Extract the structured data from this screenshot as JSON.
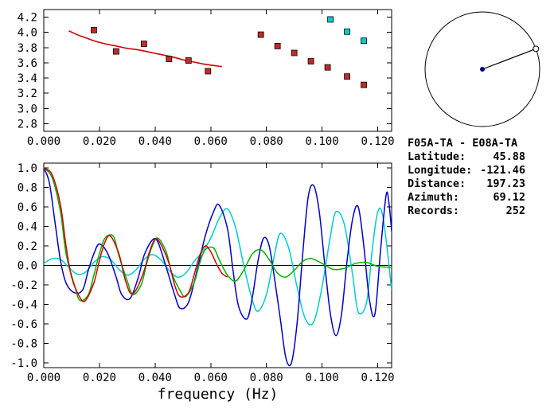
{
  "info": {
    "title": "F05A-TA - E08A-TA",
    "rows": [
      {
        "label": "Latitude:",
        "value": "45.88"
      },
      {
        "label": "Longitude:",
        "value": "-121.46"
      },
      {
        "label": "Distance:",
        "value": "197.23"
      },
      {
        "label": "Azimuth:",
        "value": "69.12"
      },
      {
        "label": "Records:",
        "value": "252"
      }
    ]
  },
  "chart_data": [
    {
      "id": "dispersion",
      "type": "scatter",
      "title": "",
      "xlabel": "",
      "ylabel": "",
      "xlim": [
        0,
        0.125
      ],
      "ylim": [
        2.7,
        4.3
      ],
      "grid": false,
      "xticks": [
        "0.000",
        "0.020",
        "0.040",
        "0.060",
        "0.080",
        "0.100",
        "0.120"
      ],
      "yticks": [
        "2.8",
        "3.0",
        "3.2",
        "3.4",
        "3.6",
        "3.8",
        "4.0",
        "4.2"
      ],
      "series": [
        {
          "name": "red-reference-curve",
          "marker": "line",
          "color": "#d40000",
          "points": [
            [
              0.009,
              4.02
            ],
            [
              0.012,
              3.97
            ],
            [
              0.015,
              3.93
            ],
            [
              0.018,
              3.89
            ],
            [
              0.022,
              3.85
            ],
            [
              0.026,
              3.82
            ],
            [
              0.03,
              3.79
            ],
            [
              0.034,
              3.77
            ],
            [
              0.038,
              3.74
            ],
            [
              0.042,
              3.71
            ],
            [
              0.046,
              3.68
            ],
            [
              0.05,
              3.64
            ],
            [
              0.054,
              3.61
            ],
            [
              0.058,
              3.58
            ],
            [
              0.062,
              3.56
            ],
            [
              0.064,
              3.55
            ]
          ]
        },
        {
          "name": "red-measurements",
          "marker": "square",
          "color": "#c22a2a",
          "points": [
            [
              0.018,
              4.03
            ],
            [
              0.026,
              3.75
            ],
            [
              0.036,
              3.85
            ],
            [
              0.045,
              3.65
            ],
            [
              0.052,
              3.63
            ],
            [
              0.059,
              3.49
            ],
            [
              0.078,
              3.97
            ],
            [
              0.084,
              3.82
            ],
            [
              0.09,
              3.73
            ],
            [
              0.096,
              3.62
            ],
            [
              0.102,
              3.54
            ],
            [
              0.109,
              3.42
            ],
            [
              0.115,
              3.31
            ]
          ]
        },
        {
          "name": "cyan-measurements",
          "marker": "square",
          "color": "#00cccc",
          "points": [
            [
              0.103,
              4.17
            ],
            [
              0.109,
              4.01
            ],
            [
              0.115,
              3.89
            ]
          ]
        }
      ]
    },
    {
      "id": "correlation",
      "type": "line",
      "title": "",
      "xlabel": "frequency (Hz)",
      "ylabel": "",
      "xlim": [
        0,
        0.125
      ],
      "ylim": [
        -1.05,
        1.05
      ],
      "grid": false,
      "zero_line": true,
      "xticks": [
        "0.000",
        "0.020",
        "0.040",
        "0.060",
        "0.080",
        "0.100",
        "0.120"
      ],
      "yticks": [
        "1.0",
        "0.8",
        "0.6",
        "0.4",
        "0.2",
        "0.0",
        "-0.2",
        "-0.4",
        "-0.6",
        "-0.8",
        "-1.0"
      ],
      "series": [
        {
          "name": "cyan-trace",
          "color": "#00cdcd",
          "points": [
            [
              0.0,
              0.02
            ],
            [
              0.003,
              0.07
            ],
            [
              0.006,
              0.06
            ],
            [
              0.009,
              -0.02
            ],
            [
              0.012,
              -0.09
            ],
            [
              0.015,
              -0.07
            ],
            [
              0.018,
              0.03
            ],
            [
              0.021,
              0.09
            ],
            [
              0.024,
              0.06
            ],
            [
              0.027,
              -0.04
            ],
            [
              0.03,
              -0.1
            ],
            [
              0.033,
              -0.05
            ],
            [
              0.036,
              0.06
            ],
            [
              0.039,
              0.11
            ],
            [
              0.042,
              0.06
            ],
            [
              0.045,
              -0.05
            ],
            [
              0.048,
              -0.12
            ],
            [
              0.051,
              -0.08
            ],
            [
              0.054,
              0.04
            ],
            [
              0.057,
              0.14
            ],
            [
              0.06,
              0.28
            ],
            [
              0.063,
              0.48
            ],
            [
              0.066,
              0.58
            ],
            [
              0.069,
              0.38
            ],
            [
              0.072,
              -0.02
            ],
            [
              0.075,
              -0.36
            ],
            [
              0.077,
              -0.47
            ],
            [
              0.08,
              -0.3
            ],
            [
              0.083,
              0.12
            ],
            [
              0.085,
              0.33
            ],
            [
              0.088,
              0.18
            ],
            [
              0.091,
              -0.22
            ],
            [
              0.094,
              -0.55
            ],
            [
              0.097,
              -0.58
            ],
            [
              0.1,
              -0.22
            ],
            [
              0.103,
              0.3
            ],
            [
              0.105,
              0.55
            ],
            [
              0.108,
              0.42
            ],
            [
              0.111,
              -0.1
            ],
            [
              0.113,
              -0.48
            ],
            [
              0.116,
              -0.38
            ],
            [
              0.118,
              0.15
            ],
            [
              0.12,
              0.55
            ],
            [
              0.122,
              0.48
            ],
            [
              0.125,
              -0.25
            ]
          ]
        },
        {
          "name": "blue-trace",
          "color": "#0000c8",
          "points": [
            [
              0.0,
              1.0
            ],
            [
              0.002,
              0.85
            ],
            [
              0.004,
              0.45
            ],
            [
              0.006,
              0.05
            ],
            [
              0.008,
              -0.18
            ],
            [
              0.011,
              -0.28
            ],
            [
              0.014,
              -0.25
            ],
            [
              0.016,
              -0.05
            ],
            [
              0.018,
              0.12
            ],
            [
              0.02,
              0.22
            ],
            [
              0.023,
              0.12
            ],
            [
              0.026,
              -0.12
            ],
            [
              0.028,
              -0.3
            ],
            [
              0.031,
              -0.34
            ],
            [
              0.034,
              -0.12
            ],
            [
              0.036,
              0.1
            ],
            [
              0.039,
              0.26
            ],
            [
              0.041,
              0.24
            ],
            [
              0.044,
              -0.02
            ],
            [
              0.047,
              -0.3
            ],
            [
              0.049,
              -0.44
            ],
            [
              0.052,
              -0.38
            ],
            [
              0.055,
              -0.06
            ],
            [
              0.058,
              0.3
            ],
            [
              0.061,
              0.55
            ],
            [
              0.063,
              0.62
            ],
            [
              0.066,
              0.38
            ],
            [
              0.068,
              -0.05
            ],
            [
              0.07,
              -0.42
            ],
            [
              0.073,
              -0.55
            ],
            [
              0.075,
              -0.32
            ],
            [
              0.077,
              0.05
            ],
            [
              0.079,
              0.28
            ],
            [
              0.081,
              0.2
            ],
            [
              0.083,
              -0.15
            ],
            [
              0.085,
              -0.55
            ],
            [
              0.087,
              -0.95
            ],
            [
              0.089,
              -1.0
            ],
            [
              0.091,
              -0.6
            ],
            [
              0.093,
              0.1
            ],
            [
              0.095,
              0.7
            ],
            [
              0.097,
              0.82
            ],
            [
              0.099,
              0.55
            ],
            [
              0.101,
              0.0
            ],
            [
              0.103,
              -0.5
            ],
            [
              0.105,
              -0.72
            ],
            [
              0.107,
              -0.5
            ],
            [
              0.109,
              0.05
            ],
            [
              0.111,
              0.48
            ],
            [
              0.113,
              0.6
            ],
            [
              0.115,
              0.2
            ],
            [
              0.117,
              -0.35
            ],
            [
              0.119,
              -0.5
            ],
            [
              0.121,
              0.15
            ],
            [
              0.123,
              0.72
            ],
            [
              0.124,
              0.65
            ],
            [
              0.125,
              0.35
            ]
          ]
        },
        {
          "name": "green-trace",
          "color": "#00b000",
          "points": [
            [
              0.0,
              1.0
            ],
            [
              0.003,
              0.9
            ],
            [
              0.006,
              0.55
            ],
            [
              0.008,
              0.12
            ],
            [
              0.011,
              -0.2
            ],
            [
              0.013,
              -0.36
            ],
            [
              0.016,
              -0.3
            ],
            [
              0.018,
              -0.1
            ],
            [
              0.02,
              0.12
            ],
            [
              0.022,
              0.28
            ],
            [
              0.025,
              0.3
            ],
            [
              0.027,
              0.1
            ],
            [
              0.03,
              -0.16
            ],
            [
              0.032,
              -0.3
            ],
            [
              0.035,
              -0.2
            ],
            [
              0.037,
              0.02
            ],
            [
              0.039,
              0.2
            ],
            [
              0.041,
              0.28
            ],
            [
              0.044,
              0.14
            ],
            [
              0.046,
              -0.08
            ],
            [
              0.049,
              -0.26
            ],
            [
              0.051,
              -0.32
            ],
            [
              0.054,
              -0.18
            ],
            [
              0.056,
              0.02
            ],
            [
              0.058,
              0.16
            ],
            [
              0.061,
              0.18
            ],
            [
              0.063,
              0.06
            ],
            [
              0.066,
              -0.1
            ],
            [
              0.069,
              -0.16
            ],
            [
              0.072,
              -0.04
            ],
            [
              0.075,
              0.12
            ],
            [
              0.078,
              0.16
            ],
            [
              0.081,
              0.06
            ],
            [
              0.084,
              -0.08
            ],
            [
              0.087,
              -0.12
            ],
            [
              0.09,
              -0.05
            ],
            [
              0.093,
              0.04
            ],
            [
              0.096,
              0.07
            ],
            [
              0.1,
              0.02
            ],
            [
              0.104,
              -0.04
            ],
            [
              0.108,
              -0.03
            ],
            [
              0.112,
              0.02
            ],
            [
              0.116,
              0.03
            ],
            [
              0.12,
              -0.01
            ],
            [
              0.125,
              -0.02
            ]
          ]
        },
        {
          "name": "red-trace",
          "color": "#d40000",
          "points": [
            [
              0.0,
              1.0
            ],
            [
              0.003,
              0.93
            ],
            [
              0.006,
              0.62
            ],
            [
              0.008,
              0.2
            ],
            [
              0.01,
              -0.12
            ],
            [
              0.013,
              -0.33
            ],
            [
              0.015,
              -0.36
            ],
            [
              0.018,
              -0.18
            ],
            [
              0.02,
              0.05
            ],
            [
              0.022,
              0.24
            ],
            [
              0.024,
              0.3
            ],
            [
              0.027,
              0.12
            ],
            [
              0.029,
              -0.12
            ],
            [
              0.031,
              -0.28
            ],
            [
              0.033,
              -0.26
            ],
            [
              0.036,
              -0.06
            ],
            [
              0.038,
              0.14
            ],
            [
              0.04,
              0.27
            ],
            [
              0.042,
              0.22
            ],
            [
              0.045,
              0.02
            ],
            [
              0.047,
              -0.2
            ],
            [
              0.049,
              -0.32
            ],
            [
              0.052,
              -0.28
            ],
            [
              0.054,
              -0.1
            ],
            [
              0.056,
              0.1
            ],
            [
              0.058,
              0.2
            ],
            [
              0.06,
              0.14
            ],
            [
              0.062,
              0.02
            ],
            [
              0.064,
              -0.08
            ],
            [
              0.066,
              -0.12
            ]
          ]
        }
      ]
    },
    {
      "id": "azimuth-dial",
      "type": "diagram",
      "azimuth_deg": 69.12,
      "colors": {
        "circle": "#000000",
        "line": "#000000",
        "center_dot": "#000080",
        "edge_marker_fill": "#ffffff",
        "edge_marker_stroke": "#000000"
      }
    }
  ]
}
